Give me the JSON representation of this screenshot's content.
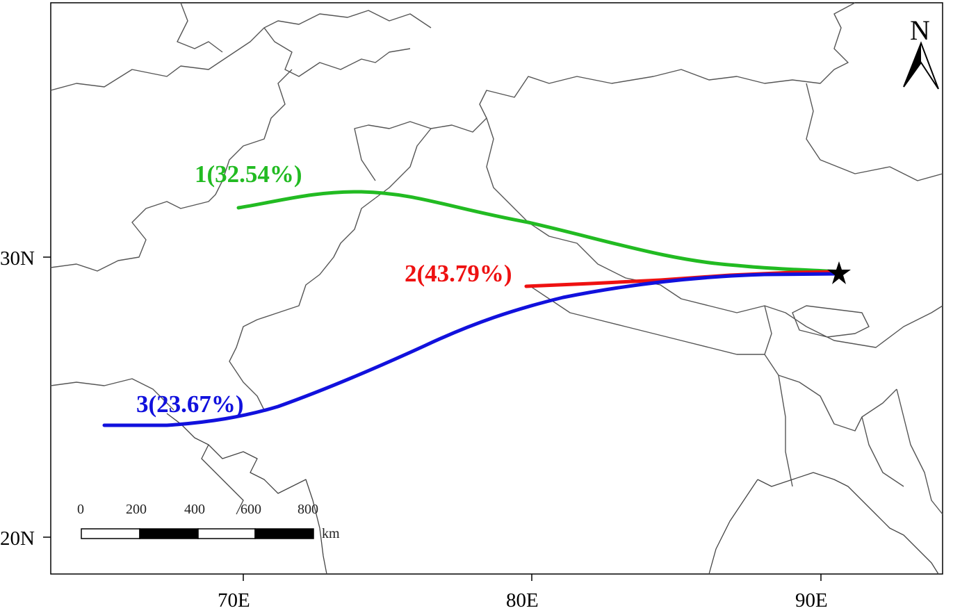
{
  "map": {
    "north_label": "N",
    "lat_labels": [
      "30N",
      "20N"
    ],
    "lon_labels": [
      "70E",
      "80E",
      "90E"
    ],
    "scale_bar": {
      "ticks": [
        "0",
        "200",
        "400",
        "600",
        "800"
      ],
      "unit": "km"
    },
    "trajectories": [
      {
        "label": "1(32.54%)",
        "color": "#22bb22"
      },
      {
        "label": "2(43.79%)",
        "color": "#ee1111"
      },
      {
        "label": "3(23.67%)",
        "color": "#1111dd"
      }
    ],
    "origin_marker": "star-icon"
  }
}
